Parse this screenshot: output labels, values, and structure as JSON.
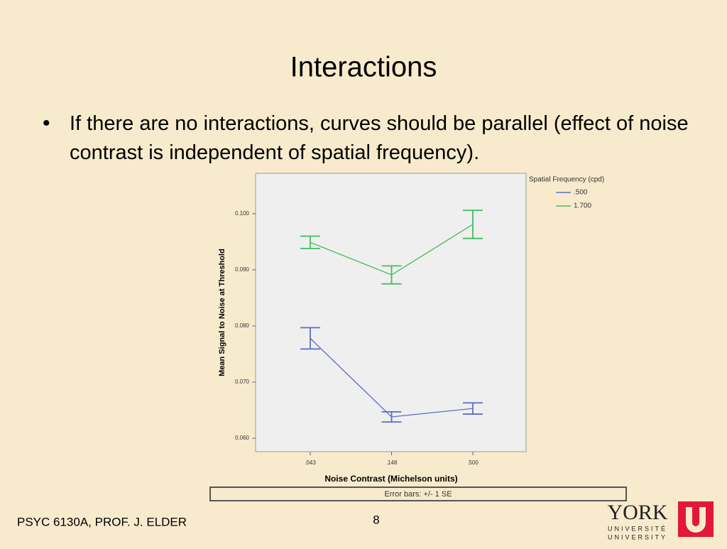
{
  "slide": {
    "title": "Interactions",
    "bullet": "If there are no interactions, curves should be parallel (effect of noise contrast is independent of spatial frequency).",
    "footer": "PSYC 6130A, PROF. J. ELDER",
    "page": "8",
    "logo": {
      "name": "YORK",
      "line1": "UNIVERSITÉ",
      "line2": "UNIVERSITY"
    }
  },
  "chart_data": {
    "type": "line",
    "x_label": "Noise Contrast (Michelson units)",
    "y_label": "Mean Signal to Noise at Threshold",
    "legend_title": "Spatial Frequency (cpd)",
    "note": "Error bars: +/- 1 SE",
    "categories": [
      ".043",
      ".148",
      ".500"
    ],
    "series": [
      {
        "name": ".500",
        "color": "#5b6fc2",
        "values": [
          0.0778,
          0.0638,
          0.0653
        ],
        "errors": [
          0.0019,
          0.0009,
          0.001
        ]
      },
      {
        "name": "1.700",
        "color": "#45bd5c",
        "values": [
          0.0949,
          0.0891,
          0.0981
        ],
        "errors": [
          0.0011,
          0.0016,
          0.0025
        ]
      }
    ],
    "ylim": [
      0.0576,
      0.1072
    ],
    "yticks": [
      {
        "value": 0.06,
        "label": "0.060"
      },
      {
        "value": 0.07,
        "label": "0.070"
      },
      {
        "value": 0.08,
        "label": "0.080"
      },
      {
        "value": 0.09,
        "label": "0.090"
      },
      {
        "value": 0.1,
        "label": "0.100"
      }
    ]
  }
}
